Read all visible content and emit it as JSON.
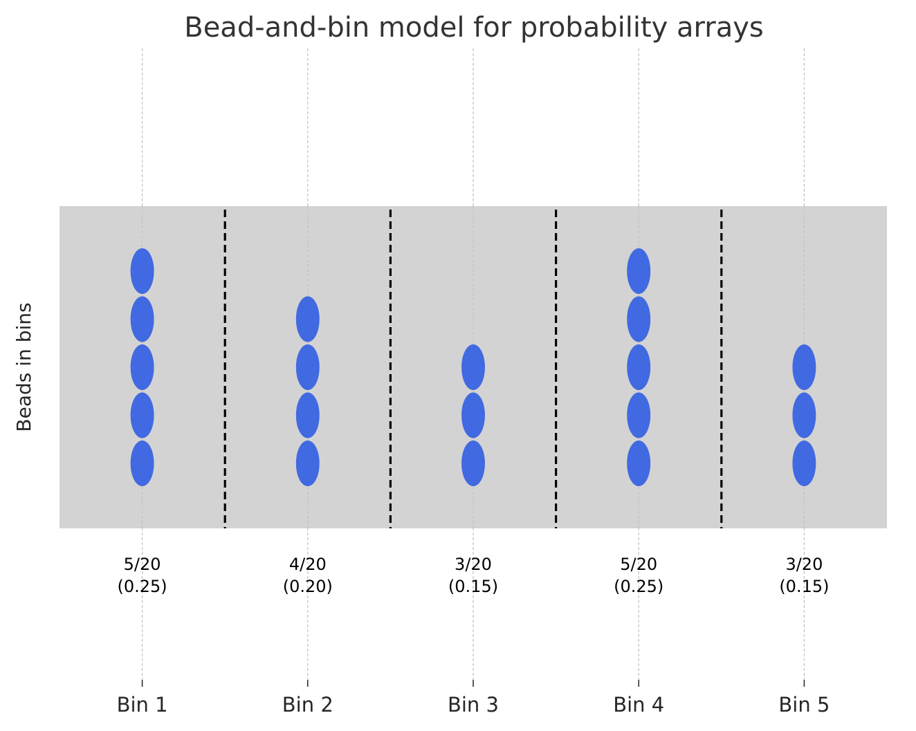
{
  "chart_data": {
    "type": "scatter",
    "title": "Bead-and-bin model for probability arrays",
    "xlabel": "",
    "ylabel": "Beads in bins",
    "categories": [
      "Bin 1",
      "Bin 2",
      "Bin 3",
      "Bin 4",
      "Bin 5"
    ],
    "bead_counts": [
      5,
      4,
      3,
      5,
      3
    ],
    "total_beads": 20,
    "fraction_labels": [
      "5/20",
      "4/20",
      "3/20",
      "5/20",
      "3/20"
    ],
    "probability_labels": [
      "(0.25)",
      "(0.20)",
      "(0.15)",
      "(0.25)",
      "(0.15)"
    ],
    "probabilities": [
      0.25,
      0.2,
      0.15,
      0.25,
      0.15
    ],
    "grid": true,
    "colors": {
      "bead": "#4169e1",
      "bin_background": "#d3d3d3",
      "divider": "#000000",
      "grid": "#bfbfbf"
    }
  }
}
